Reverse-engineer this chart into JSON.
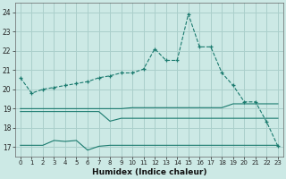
{
  "x": [
    0,
    1,
    2,
    3,
    4,
    5,
    6,
    7,
    8,
    9,
    10,
    11,
    12,
    13,
    14,
    15,
    16,
    17,
    18,
    19,
    20,
    21,
    22,
    23
  ],
  "line_main": [
    20.6,
    19.8,
    20.0,
    20.1,
    20.2,
    20.3,
    20.4,
    20.6,
    20.7,
    20.85,
    20.85,
    21.05,
    22.1,
    21.5,
    21.5,
    23.9,
    22.2,
    22.2,
    20.85,
    20.2,
    19.35,
    19.35,
    18.3,
    17.05
  ],
  "line_upper": [
    19.0,
    19.0,
    19.0,
    19.0,
    19.0,
    19.0,
    19.0,
    19.0,
    19.0,
    19.0,
    19.05,
    19.05,
    19.05,
    19.05,
    19.05,
    19.05,
    19.05,
    19.05,
    19.05,
    19.25,
    19.25,
    19.25,
    19.25,
    19.25
  ],
  "line_mid": [
    18.85,
    18.85,
    18.85,
    18.85,
    18.85,
    18.85,
    18.85,
    18.85,
    18.35,
    18.5,
    18.5,
    18.5,
    18.5,
    18.5,
    18.5,
    18.5,
    18.5,
    18.5,
    18.5,
    18.5,
    18.5,
    18.5,
    18.5,
    18.5
  ],
  "line_lower": [
    17.1,
    17.1,
    17.1,
    17.35,
    17.3,
    17.35,
    16.85,
    17.05,
    17.1,
    17.1,
    17.1,
    17.1,
    17.1,
    17.1,
    17.1,
    17.1,
    17.1,
    17.1,
    17.1,
    17.1,
    17.1,
    17.1,
    17.1,
    17.1
  ],
  "line_color": "#1a7a6e",
  "bg_color": "#cce9e5",
  "grid_color": "#aacfcb",
  "xlabel": "Humidex (Indice chaleur)",
  "ylim": [
    16.5,
    24.5
  ],
  "xlim": [
    -0.5,
    23.5
  ],
  "yticks": [
    17,
    18,
    19,
    20,
    21,
    22,
    23,
    24
  ],
  "xticks": [
    0,
    1,
    2,
    3,
    4,
    5,
    6,
    7,
    8,
    9,
    10,
    11,
    12,
    13,
    14,
    15,
    16,
    17,
    18,
    19,
    20,
    21,
    22,
    23
  ]
}
